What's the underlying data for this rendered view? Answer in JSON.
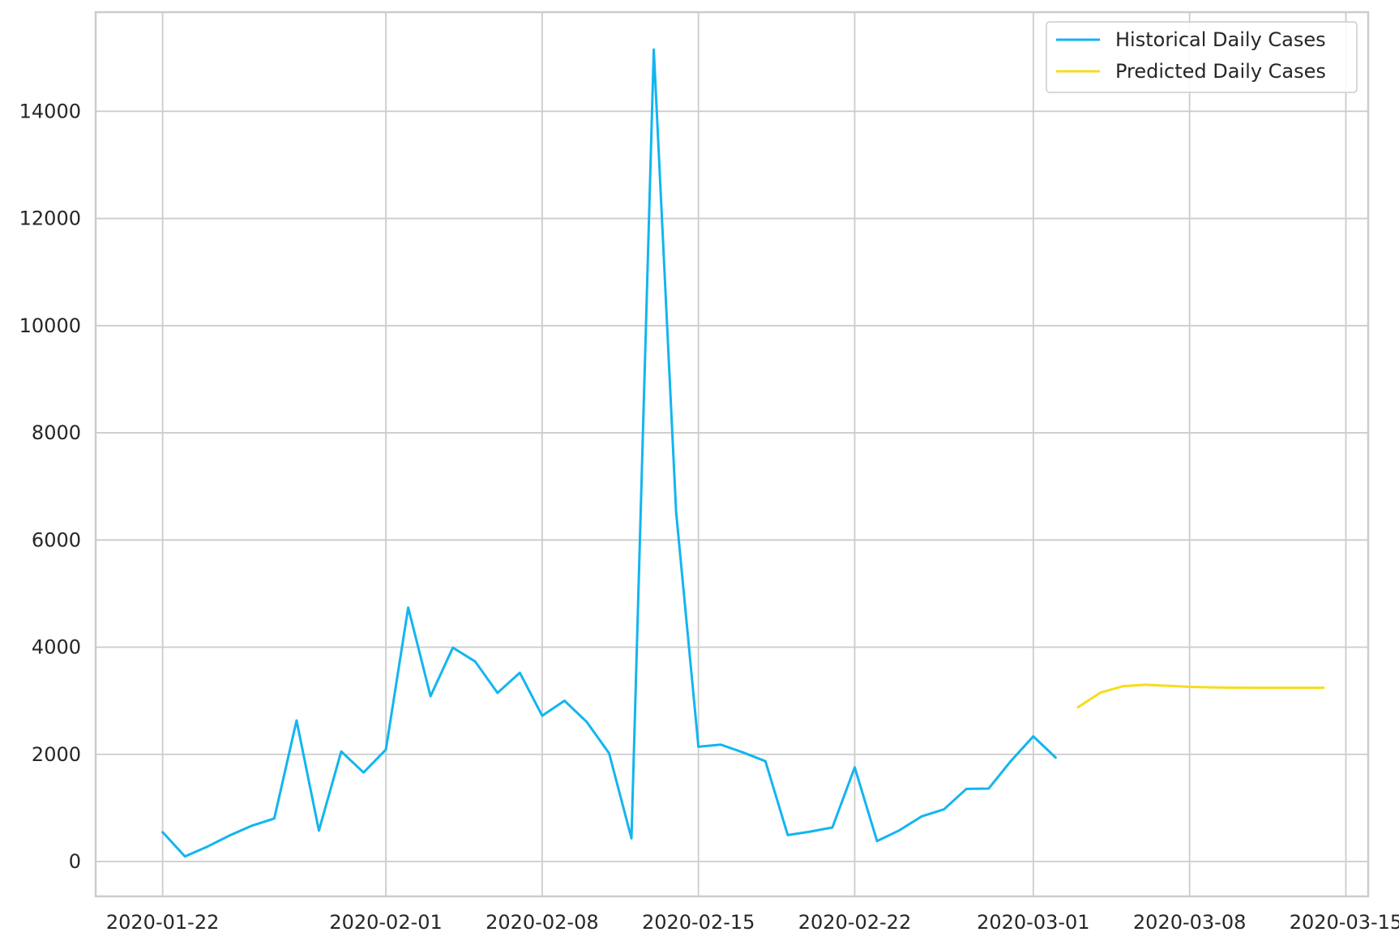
{
  "chart_data": {
    "type": "line",
    "title": "",
    "xlabel": "",
    "ylabel": "",
    "x_ticks": [
      "2020-01-22",
      "2020-02-01",
      "2020-02-08",
      "2020-02-15",
      "2020-02-22",
      "2020-03-01",
      "2020-03-08",
      "2020-03-15"
    ],
    "y_ticks": [
      "0",
      "2000",
      "4000",
      "6000",
      "8000",
      "10000",
      "12000",
      "14000"
    ],
    "xlim": [
      "2020-01-19",
      "2020-03-16"
    ],
    "ylim": [
      -650,
      15850
    ],
    "grid": true,
    "legend_position": "top-right",
    "series": [
      {
        "name": "Historical Daily Cases",
        "color": "#12b5f0",
        "points": [
          [
            "2020-01-22",
            548
          ],
          [
            "2020-01-23",
            95
          ],
          [
            "2020-01-24",
            277
          ],
          [
            "2020-01-25",
            486
          ],
          [
            "2020-01-26",
            669
          ],
          [
            "2020-01-27",
            802
          ],
          [
            "2020-01-28",
            2632
          ],
          [
            "2020-01-29",
            578
          ],
          [
            "2020-01-30",
            2054
          ],
          [
            "2020-01-31",
            1661
          ],
          [
            "2020-02-01",
            2089
          ],
          [
            "2020-02-02",
            4739
          ],
          [
            "2020-02-03",
            3086
          ],
          [
            "2020-02-04",
            3991
          ],
          [
            "2020-02-05",
            3733
          ],
          [
            "2020-02-06",
            3147
          ],
          [
            "2020-02-07",
            3523
          ],
          [
            "2020-02-08",
            2721
          ],
          [
            "2020-02-09",
            3001
          ],
          [
            "2020-02-10",
            2604
          ],
          [
            "2020-02-11",
            2020
          ],
          [
            "2020-02-12",
            433
          ],
          [
            "2020-02-13",
            15152
          ],
          [
            "2020-02-14",
            6526
          ],
          [
            "2020-02-15",
            2143
          ],
          [
            "2020-02-16",
            2182
          ],
          [
            "2020-02-17",
            2035
          ],
          [
            "2020-02-18",
            1873
          ],
          [
            "2020-02-19",
            494
          ],
          [
            "2020-02-20",
            558
          ],
          [
            "2020-02-21",
            636
          ],
          [
            "2020-02-22",
            1757
          ],
          [
            "2020-02-23",
            382
          ],
          [
            "2020-02-24",
            582
          ],
          [
            "2020-02-25",
            843
          ],
          [
            "2020-02-26",
            975
          ],
          [
            "2020-02-27",
            1355
          ],
          [
            "2020-02-28",
            1362
          ],
          [
            "2020-02-29",
            1878
          ],
          [
            "2020-03-01",
            2336
          ],
          [
            "2020-03-02",
            1940
          ]
        ]
      },
      {
        "name": "Predicted Daily Cases",
        "color": "#f7dc1b",
        "points": [
          [
            "2020-03-03",
            2880
          ],
          [
            "2020-03-04",
            3150
          ],
          [
            "2020-03-05",
            3270
          ],
          [
            "2020-03-06",
            3300
          ],
          [
            "2020-03-07",
            3280
          ],
          [
            "2020-03-08",
            3260
          ],
          [
            "2020-03-09",
            3250
          ],
          [
            "2020-03-10",
            3245
          ],
          [
            "2020-03-11",
            3243
          ],
          [
            "2020-03-12",
            3242
          ],
          [
            "2020-03-13",
            3242
          ],
          [
            "2020-03-14",
            3242
          ]
        ]
      }
    ]
  }
}
